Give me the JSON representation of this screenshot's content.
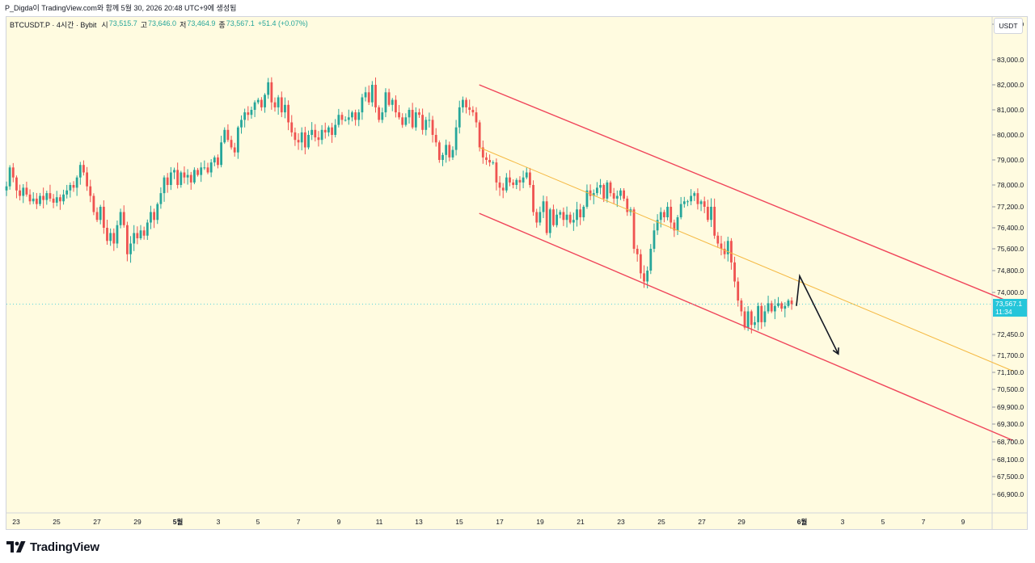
{
  "header": {
    "caption": "P_Digda이 TradingView.com와 함께 5월 30, 2026 20:48 UTC+9에 생성됨"
  },
  "legend": {
    "symbol": "BTCUSDT.P · 4시간 · Bybit",
    "open_label": "시",
    "open": "73,515.7",
    "high_label": "고",
    "high": "73,646.0",
    "low_label": "저",
    "low": "73,464.9",
    "close_label": "종",
    "close": "73,567.1",
    "change": "+51.4 (+0.07%)"
  },
  "currency": "USDT",
  "last_price": {
    "price": "73,567.1",
    "countdown": "11:34"
  },
  "footer": {
    "brand": "TradingView"
  },
  "colors": {
    "background": "#fffbe0",
    "up": "#26a69a",
    "down": "#ef5350",
    "channel": "#f0455a",
    "midline": "#f5b942",
    "accent": "#26c6da"
  },
  "chart_data": {
    "type": "candlestick",
    "y_axis_ticks": [
      84000,
      83000,
      82000,
      81000,
      80000,
      79000,
      78000,
      77200,
      76400,
      75600,
      74800,
      74000,
      72450,
      71700,
      71100,
      70500,
      69900,
      69300,
      68700,
      68100,
      67500,
      66900
    ],
    "y_axis_labels": [
      "84,000.0",
      "83,000.0",
      "82,000.0",
      "81,000.0",
      "80,000.0",
      "79,000.0",
      "78,000.0",
      "77,200.0",
      "76,400.0",
      "75,600.0",
      "74,800.0",
      "74,000.0",
      "72,450.0",
      "71,700.0",
      "71,100.0",
      "70,500.0",
      "69,900.0",
      "69,300.0",
      "68,700.0",
      "68,100.0",
      "67,500.0",
      "66,900.0"
    ],
    "x_axis_labels": [
      "23",
      "25",
      "27",
      "29",
      "5월",
      "3",
      "5",
      "7",
      "9",
      "11",
      "13",
      "15",
      "17",
      "19",
      "21",
      "23",
      "25",
      "27",
      "29",
      "6월",
      "3",
      "5",
      "7",
      "9"
    ],
    "x_start": "2026-04-22",
    "candle_hours": 4,
    "closes": [
      77950,
      78700,
      78300,
      77800,
      77600,
      77900,
      77650,
      77400,
      77500,
      77300,
      77600,
      77450,
      77700,
      77500,
      77350,
      77550,
      77400,
      77650,
      77800,
      78000,
      77900,
      78300,
      78800,
      78500,
      77950,
      77600,
      77000,
      76700,
      77200,
      76400,
      75900,
      76200,
      75800,
      76500,
      77000,
      76500,
      75400,
      75800,
      76200,
      76000,
      76300,
      76100,
      76600,
      77000,
      76700,
      77300,
      77700,
      78300,
      78000,
      78500,
      78600,
      78000,
      78500,
      78300,
      78400,
      78100,
      78600,
      78400,
      78700,
      78700,
      78500,
      78900,
      79100,
      78800,
      79700,
      80200,
      79800,
      79500,
      79300,
      80300,
      80600,
      80900,
      80800,
      81000,
      81300,
      81400,
      81100,
      81600,
      82100,
      81300,
      81100,
      81500,
      80900,
      81200,
      80500,
      80100,
      79800,
      79700,
      80100,
      79500,
      80000,
      80200,
      79900,
      79800,
      80200,
      80100,
      80300,
      80000,
      80400,
      80800,
      80600,
      80600,
      80700,
      80900,
      80600,
      80900,
      81500,
      81700,
      81300,
      82000,
      81100,
      80600,
      80900,
      81700,
      81200,
      81400,
      80900,
      80700,
      80400,
      80700,
      81000,
      80300,
      80900,
      80800,
      80200,
      80600,
      80600,
      80000,
      79700,
      79000,
      79200,
      79600,
      79100,
      79400,
      80300,
      81100,
      81400,
      81100,
      81000,
      80900,
      80500,
      79500,
      79100,
      79000,
      78900,
      78900,
      78100,
      77900,
      77800,
      78300,
      78100,
      78000,
      78200,
      78100,
      78300,
      78500,
      78000,
      77000,
      76600,
      77000,
      77400,
      76200,
      77100,
      76500,
      76900,
      77000,
      76700,
      76900,
      76600,
      76700,
      77100,
      76800,
      77200,
      77800,
      77600,
      77700,
      77900,
      78000,
      77500,
      78100,
      77700,
      77500,
      77600,
      77800,
      77500,
      77000,
      77100,
      75600,
      75400,
      74700,
      74400,
      74800,
      75600,
      76300,
      76700,
      77000,
      76800,
      77200,
      76600,
      76300,
      76800,
      77300,
      77400,
      77400,
      77600,
      77700,
      77300,
      77400,
      77200,
      76700,
      77200,
      76100,
      75800,
      75600,
      75400,
      75900,
      75100,
      74400,
      73700,
      73300,
      72700,
      73300,
      72800,
      72900,
      73500,
      72900,
      73300,
      73600,
      73300,
      73500,
      73600,
      73400,
      73500,
      73700,
      73567
    ],
    "channel_upper": [
      [
        "2026-05-15T00:00",
        82000
      ],
      [
        "2026-06-10T12:00",
        73600
      ]
    ],
    "channel_lower": [
      [
        "2026-05-15T00:00",
        76950
      ],
      [
        "2026-06-10T12:00",
        68750
      ]
    ],
    "midline": [
      [
        "2026-05-15T00:00",
        79500
      ],
      [
        "2026-06-10T12:00",
        71150
      ]
    ],
    "arrow_projection": [
      [
        "2026-05-30T20:00",
        73500
      ],
      [
        "2026-05-30T20:00",
        74600
      ],
      [
        "2026-06-01T20:00",
        71750
      ]
    ],
    "last_price": 73567.1
  }
}
